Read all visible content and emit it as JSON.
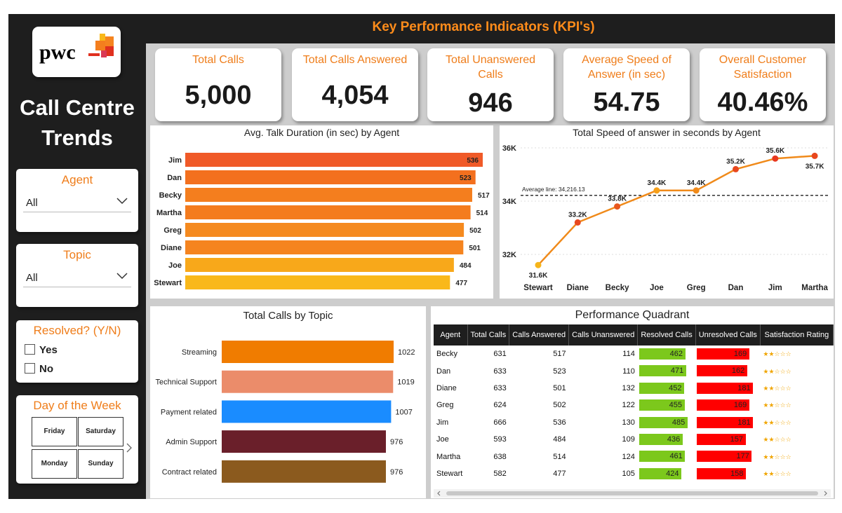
{
  "title": "Call Centre Trends",
  "header": {
    "kpi_title": "Key Performance Indicators (KPI's)"
  },
  "logo": {
    "text": "pwc"
  },
  "kpis": [
    {
      "label": "Total Calls",
      "value": "5,000"
    },
    {
      "label": "Total Calls Answered",
      "value": "4,054"
    },
    {
      "label": "Total Unanswered Calls",
      "value": "946"
    },
    {
      "label": "Average Speed of Answer (in sec)",
      "value": "54.75"
    },
    {
      "label": "Overall Customer Satisfaction",
      "value": "40.46%"
    }
  ],
  "slicers": {
    "agent": {
      "title": "Agent",
      "value": "All"
    },
    "topic": {
      "title": "Topic",
      "value": "All"
    },
    "resolved": {
      "title": "Resolved? (Y/N)",
      "options": [
        "Yes",
        "No"
      ]
    },
    "day": {
      "title": "Day of the Week",
      "days": [
        "Friday",
        "Saturday",
        "Monday",
        "Sunday"
      ]
    }
  },
  "colors": {
    "accent": "#ef7d1a",
    "dark": "#1e1e1e",
    "green": "#7cc81c",
    "red": "#ff0000",
    "star": "#f0a500"
  },
  "chart_data": [
    {
      "type": "bar",
      "title": "Avg. Talk Duration (in sec) by Agent",
      "orientation": "horizontal",
      "categories": [
        "Jim",
        "Dan",
        "Becky",
        "Martha",
        "Greg",
        "Diane",
        "Joe",
        "Stewart"
      ],
      "values": [
        536,
        523,
        517,
        514,
        502,
        501,
        484,
        477
      ],
      "value_labels": [
        "536",
        "523",
        "517",
        "514",
        "502",
        "501",
        "484",
        "477"
      ],
      "colors": [
        "#f05a28",
        "#f3701e",
        "#f47e1e",
        "#f47c1e",
        "#f58a1f",
        "#f5841f",
        "#f8a81a",
        "#f9b81a"
      ]
    },
    {
      "type": "line",
      "title": "Total Speed of answer in seconds by Agent",
      "x": [
        "Stewart",
        "Diane",
        "Becky",
        "Joe",
        "Greg",
        "Dan",
        "Jim",
        "Martha"
      ],
      "y": [
        31600,
        33200,
        33800,
        34400,
        34400,
        35200,
        35600,
        35700
      ],
      "point_labels": [
        "31.6K",
        "33.2K",
        "33.8K",
        "34.4K",
        "34.4K",
        "35.2K",
        "35.6K",
        "35.7K"
      ],
      "yticks": [
        32000,
        34000,
        36000
      ],
      "ytick_labels": [
        "32K",
        "34K",
        "36K"
      ],
      "ylim": [
        31000,
        36000
      ],
      "reference_line": {
        "label": "Average line: 34,216.13",
        "value": 34216.13
      }
    },
    {
      "type": "bar",
      "title": "Total Calls by Topic",
      "orientation": "horizontal",
      "categories": [
        "Streaming",
        "Technical Support",
        "Payment related",
        "Admin Support",
        "Contract related"
      ],
      "values": [
        1022,
        1019,
        1007,
        976,
        976
      ],
      "value_labels": [
        "1022",
        "1019",
        "1007",
        "976",
        "976"
      ],
      "colors": [
        "#f07c00",
        "#eb8c6a",
        "#1a8cff",
        "#6a1f2a",
        "#8b5a1e"
      ]
    },
    {
      "type": "table",
      "title": "Performance Quadrant",
      "columns": [
        "Agent",
        "Total Calls",
        "Calls Answered",
        "Calls Unanswered",
        "Resolved Calls",
        "Unresolved Calls",
        "Satisfaction Rating"
      ],
      "rows": [
        [
          "Becky",
          631,
          517,
          114,
          462,
          169,
          2
        ],
        [
          "Dan",
          633,
          523,
          110,
          471,
          162,
          2
        ],
        [
          "Diane",
          633,
          501,
          132,
          452,
          181,
          2
        ],
        [
          "Greg",
          624,
          502,
          122,
          455,
          169,
          2
        ],
        [
          "Jim",
          666,
          536,
          130,
          485,
          181,
          2
        ],
        [
          "Joe",
          593,
          484,
          109,
          436,
          157,
          2
        ],
        [
          "Martha",
          638,
          514,
          124,
          461,
          177,
          2
        ],
        [
          "Stewart",
          582,
          477,
          105,
          424,
          158,
          2
        ]
      ],
      "rating_max": 5
    }
  ]
}
